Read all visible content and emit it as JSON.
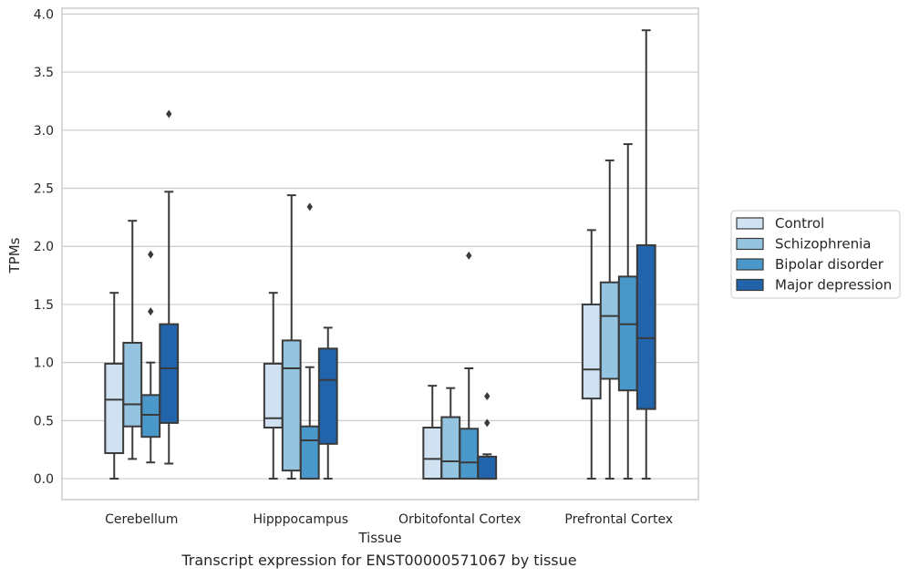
{
  "caption": "Transcript expression for ENST00000571067 by tissue",
  "colors": {
    "Control": "#d0e1f2",
    "Schizophrenia": "#94c4df",
    "Bipolar disorder": "#4a98c9",
    "Major depression": "#2164ab",
    "box_edge": "#3a3a3a",
    "grid": "#cccccc",
    "axes_frame": "#cccccc"
  },
  "chart_data": {
    "type": "box",
    "xlabel": "Tissue",
    "ylabel": "TPMs",
    "ylim": [
      -0.18,
      4.05
    ],
    "yticks": [
      "0.0",
      "0.5",
      "1.0",
      "1.5",
      "2.0",
      "2.5",
      "3.0",
      "3.5",
      "4.0"
    ],
    "grid": true,
    "legend_position": "right",
    "categories": [
      "Cerebellum",
      "Hipppocampus",
      "Orbitofontal Cortex",
      "Prefrontal Cortex"
    ],
    "series": [
      {
        "name": "Control",
        "boxes": [
          {
            "whislo": 0.0,
            "q1": 0.22,
            "med": 0.68,
            "q3": 0.99,
            "whishi": 1.6,
            "fliers": []
          },
          {
            "whislo": 0.0,
            "q1": 0.44,
            "med": 0.52,
            "q3": 0.99,
            "whishi": 1.6,
            "fliers": []
          },
          {
            "whislo": 0.0,
            "q1": 0.0,
            "med": 0.17,
            "q3": 0.44,
            "whishi": 0.8,
            "fliers": []
          },
          {
            "whislo": 0.0,
            "q1": 0.69,
            "med": 0.94,
            "q3": 1.5,
            "whishi": 2.14,
            "fliers": []
          }
        ]
      },
      {
        "name": "Schizophrenia",
        "boxes": [
          {
            "whislo": 0.17,
            "q1": 0.45,
            "med": 0.64,
            "q3": 1.17,
            "whishi": 2.22,
            "fliers": []
          },
          {
            "whislo": 0.0,
            "q1": 0.07,
            "med": 0.95,
            "q3": 1.19,
            "whishi": 2.44,
            "fliers": []
          },
          {
            "whislo": 0.0,
            "q1": 0.0,
            "med": 0.15,
            "q3": 0.53,
            "whishi": 0.78,
            "fliers": []
          },
          {
            "whislo": 0.0,
            "q1": 0.86,
            "med": 1.4,
            "q3": 1.69,
            "whishi": 2.74,
            "fliers": []
          }
        ]
      },
      {
        "name": "Bipolar disorder",
        "boxes": [
          {
            "whislo": 0.14,
            "q1": 0.36,
            "med": 0.55,
            "q3": 0.72,
            "whishi": 1.0,
            "fliers": [
              1.44,
              1.93
            ]
          },
          {
            "whislo": 0.0,
            "q1": 0.0,
            "med": 0.33,
            "q3": 0.45,
            "whishi": 0.96,
            "fliers": [
              2.34
            ]
          },
          {
            "whislo": 0.0,
            "q1": 0.0,
            "med": 0.14,
            "q3": 0.43,
            "whishi": 0.95,
            "fliers": [
              1.92
            ]
          },
          {
            "whislo": 0.0,
            "q1": 0.76,
            "med": 1.33,
            "q3": 1.74,
            "whishi": 2.88,
            "fliers": []
          }
        ]
      },
      {
        "name": "Major depression",
        "boxes": [
          {
            "whislo": 0.13,
            "q1": 0.48,
            "med": 0.95,
            "q3": 1.33,
            "whishi": 2.47,
            "fliers": [
              3.14
            ]
          },
          {
            "whislo": 0.0,
            "q1": 0.3,
            "med": 0.85,
            "q3": 1.12,
            "whishi": 1.3,
            "fliers": []
          },
          {
            "whislo": 0.0,
            "q1": 0.0,
            "med": 0.0,
            "q3": 0.19,
            "whishi": 0.21,
            "fliers": [
              0.48,
              0.71
            ]
          },
          {
            "whislo": 0.0,
            "q1": 0.6,
            "med": 1.21,
            "q3": 2.01,
            "whishi": 3.86,
            "fliers": []
          }
        ]
      }
    ]
  }
}
